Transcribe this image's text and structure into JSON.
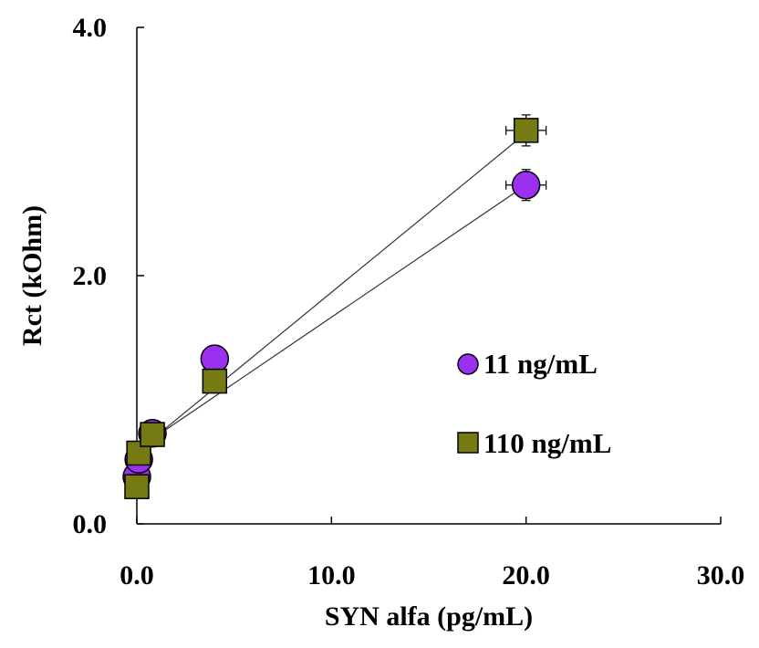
{
  "chart_data": {
    "type": "scatter",
    "title": "",
    "xlabel": "SYN alfa (pg/mL)",
    "ylabel": "Rct (kOhm)",
    "xlim": [
      0,
      30
    ],
    "ylim": [
      0,
      4
    ],
    "xticks": [
      "0.0",
      "10.0",
      "20.0",
      "30.0"
    ],
    "yticks": [
      "0.0",
      "2.0",
      "4.0"
    ],
    "grid": false,
    "legend_position": "center-right",
    "series": [
      {
        "name": "11 ng/mL",
        "marker": "circle",
        "color": "#9b30f0",
        "x": [
          0,
          0.1,
          0.8,
          4,
          20
        ],
        "y": [
          0.38,
          0.52,
          0.73,
          1.33,
          2.73
        ],
        "fit_line": {
          "x": [
            0,
            20
          ],
          "y": [
            0.6,
            2.73
          ]
        }
      },
      {
        "name": "110 ng/mL",
        "marker": "square",
        "color": "#757a12",
        "x": [
          0,
          0.1,
          0.8,
          4,
          20
        ],
        "y": [
          0.3,
          0.57,
          0.72,
          1.15,
          3.17
        ],
        "fit_line": {
          "x": [
            0,
            20
          ],
          "y": [
            0.58,
            3.15
          ]
        }
      }
    ]
  }
}
